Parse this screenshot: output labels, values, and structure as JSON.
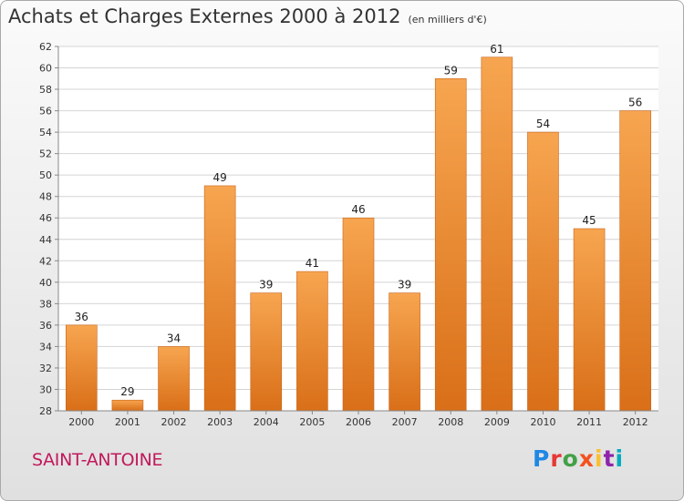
{
  "title": "Achats et Charges Externes 2000 à 2012",
  "subtitle": "(en milliers d'€)",
  "place": "SAINT-ANTOINE",
  "logo": {
    "letters": [
      {
        "ch": "P",
        "color": "#1e88e5"
      },
      {
        "ch": "r",
        "color": "#e53935"
      },
      {
        "ch": "o",
        "color": "#43a047"
      },
      {
        "ch": "x",
        "color": "#f4511e"
      },
      {
        "ch": "i",
        "color": "#fbc02d"
      },
      {
        "ch": "t",
        "color": "#8e24aa"
      },
      {
        "ch": "i",
        "color": "#00acc1"
      }
    ]
  },
  "chart_data": {
    "type": "bar",
    "categories": [
      "2000",
      "2001",
      "2002",
      "2003",
      "2004",
      "2005",
      "2006",
      "2007",
      "2008",
      "2009",
      "2010",
      "2011",
      "2012"
    ],
    "values": [
      36,
      29,
      34,
      49,
      39,
      41,
      46,
      39,
      59,
      61,
      54,
      45,
      56
    ],
    "ylim": [
      28,
      62
    ],
    "yticks": [
      28,
      30,
      32,
      34,
      36,
      38,
      40,
      42,
      44,
      46,
      48,
      50,
      52,
      54,
      56,
      58,
      60,
      62
    ],
    "grid": true,
    "bar_color": "#f08a2c"
  }
}
